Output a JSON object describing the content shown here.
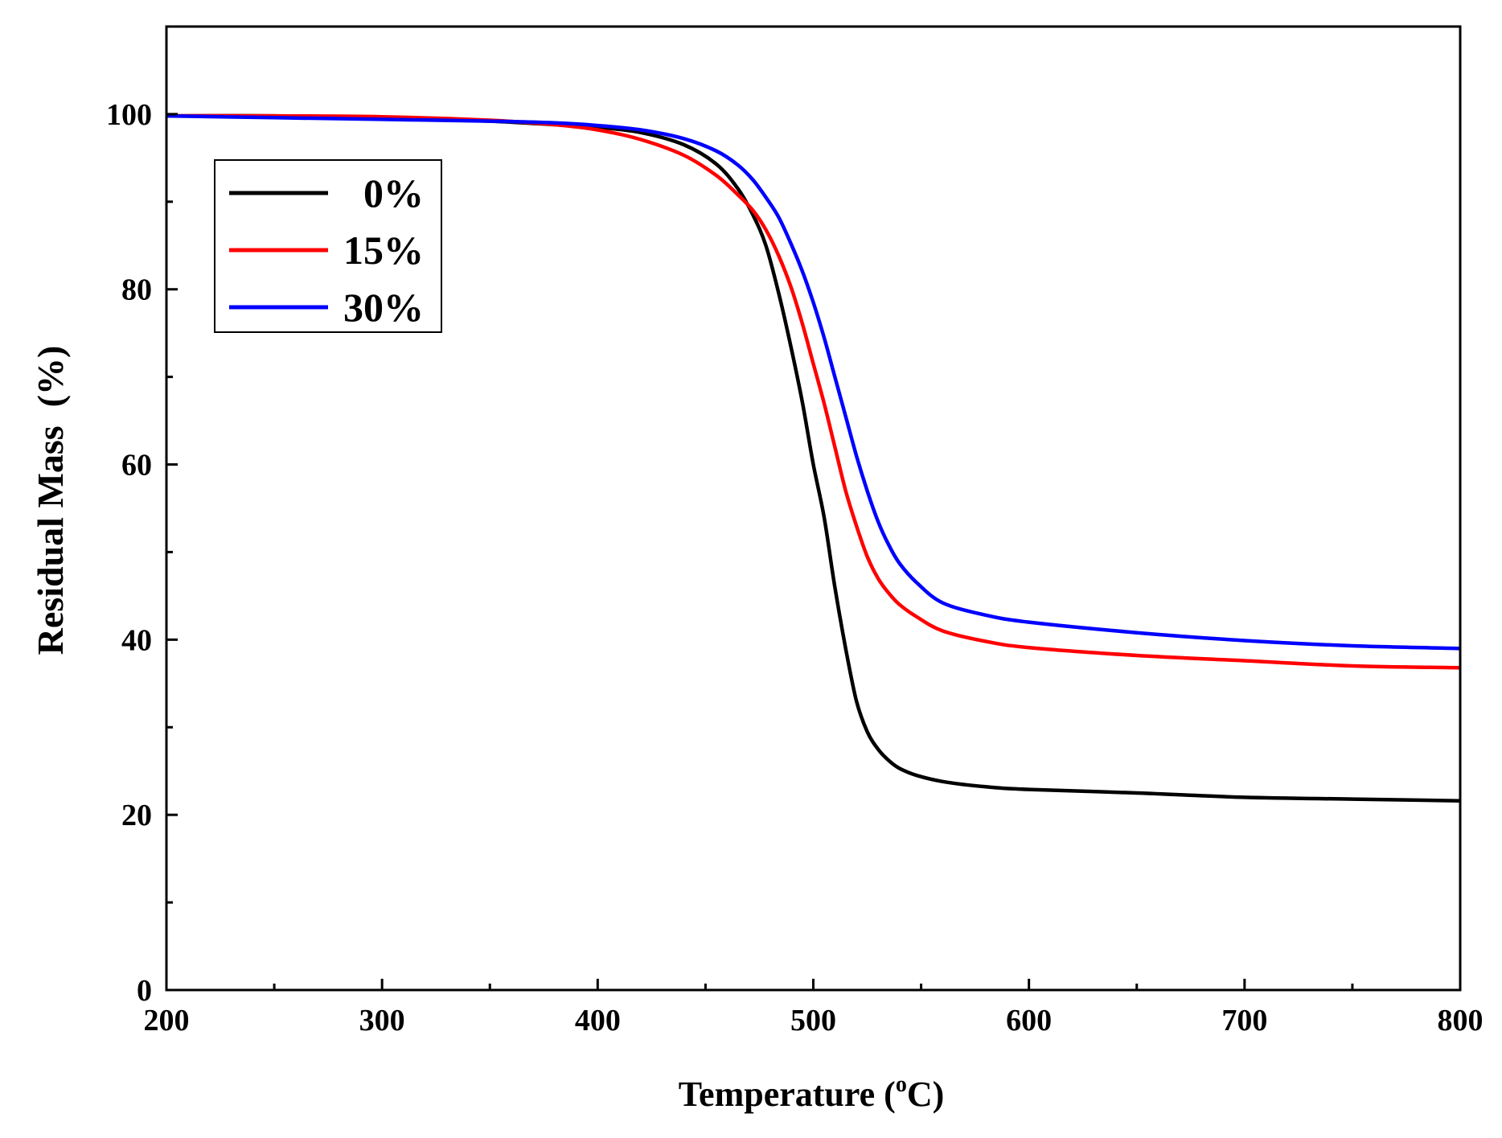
{
  "chart_data": {
    "type": "line",
    "title": "",
    "xlabel": "Temperature (oC)",
    "xlabel_parts": {
      "main": "Temperature (",
      "sup": "o",
      "unit": "C)"
    },
    "ylabel": "Residual Mass  (%)",
    "xlim": [
      200,
      800
    ],
    "ylim": [
      0,
      110
    ],
    "xticks": [
      200,
      300,
      400,
      500,
      600,
      700,
      800
    ],
    "yticks": [
      0,
      20,
      40,
      60,
      80,
      100
    ],
    "grid": false,
    "legend_position": "top-left",
    "series": [
      {
        "name": "0%",
        "color": "#000000",
        "x": [
          200,
          250,
          300,
          350,
          380,
          400,
          420,
          440,
          455,
          465,
          472,
          478,
          484,
          490,
          495,
          500,
          505,
          510,
          515,
          520,
          525,
          530,
          535,
          540,
          548,
          560,
          580,
          600,
          650,
          700,
          750,
          800
        ],
        "y": [
          99.8,
          99.8,
          99.6,
          99.2,
          98.8,
          98.5,
          97.9,
          96.5,
          94.3,
          91.5,
          88.5,
          85,
          79.5,
          73,
          67,
          60,
          54,
          46,
          39,
          33,
          29.5,
          27.5,
          26.2,
          25.3,
          24.5,
          23.8,
          23.2,
          22.9,
          22.5,
          22,
          21.8,
          21.6
        ]
      },
      {
        "name": "15%",
        "color": "#ff0000",
        "x": [
          200,
          250,
          300,
          350,
          380,
          400,
          420,
          440,
          455,
          465,
          472,
          478,
          484,
          490,
          495,
          500,
          505,
          510,
          515,
          520,
          525,
          530,
          535,
          540,
          548,
          560,
          580,
          600,
          650,
          700,
          750,
          800
        ],
        "y": [
          99.8,
          99.8,
          99.7,
          99.3,
          98.8,
          98.2,
          97.1,
          95.3,
          93,
          90.8,
          89,
          86.8,
          83.8,
          80,
          76,
          71.5,
          67,
          62,
          57,
          53,
          49.5,
          47,
          45.3,
          44,
          42.6,
          41,
          39.8,
          39.1,
          38.2,
          37.6,
          37,
          36.8
        ]
      },
      {
        "name": "30%",
        "color": "#0000ff",
        "x": [
          200,
          250,
          300,
          350,
          380,
          400,
          420,
          440,
          455,
          465,
          472,
          478,
          484,
          490,
          495,
          500,
          505,
          510,
          515,
          520,
          525,
          530,
          535,
          540,
          548,
          560,
          580,
          600,
          650,
          700,
          750,
          800
        ],
        "y": [
          99.8,
          99.6,
          99.4,
          99.2,
          99,
          98.7,
          98.2,
          97.2,
          95.8,
          94.2,
          92.5,
          90.5,
          88.2,
          85,
          82,
          78.5,
          74.5,
          70,
          65.5,
          61,
          57,
          53.5,
          50.8,
          48.7,
          46.5,
          44.2,
          42.8,
          42,
          40.8,
          39.9,
          39.3,
          39
        ]
      }
    ]
  }
}
